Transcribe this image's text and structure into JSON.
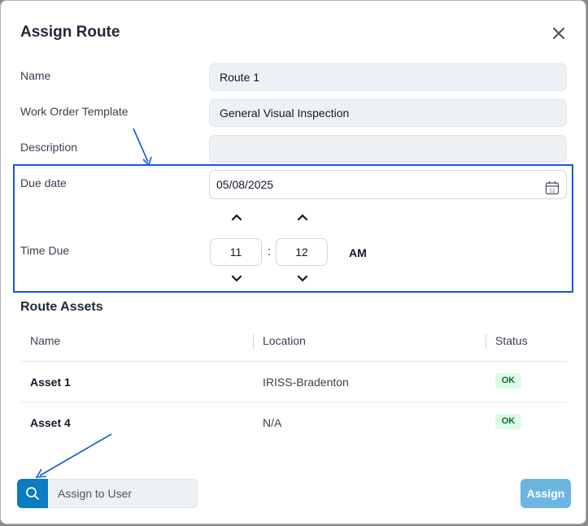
{
  "dialog": {
    "title": "Assign Route",
    "close_icon": "close-icon"
  },
  "form": {
    "name_label": "Name",
    "name_value": "Route 1",
    "template_label": "Work Order Template",
    "template_value": "General Visual Inspection",
    "description_label": "Description",
    "description_value": "",
    "due_date_label": "Due date",
    "due_date_value": "05/08/2025",
    "time_due_label": "Time Due",
    "hour": "11",
    "minute": "12",
    "separator": ":",
    "meridiem": "AM"
  },
  "assets": {
    "title": "Route Assets",
    "columns": [
      "Name",
      "Location",
      "Status"
    ],
    "rows": [
      {
        "name": "Asset 1",
        "location": "IRISS-Bradenton",
        "status": "OK"
      },
      {
        "name": "Asset 4",
        "location": "N/A",
        "status": "OK"
      }
    ]
  },
  "footer": {
    "search_icon": "search-icon",
    "assign_user_placeholder": "Assign to User",
    "assign_label": "Assign"
  },
  "colors": {
    "accent": "#0b7cc2",
    "assign_disabled": "#6cb5e0",
    "highlight": "#1a56db",
    "ok_badge_bg": "#dcfce7",
    "ok_badge_text": "#166534"
  }
}
